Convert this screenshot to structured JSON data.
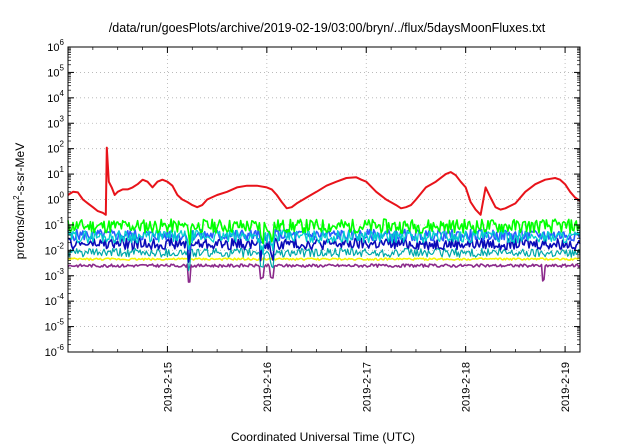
{
  "chart_data": {
    "type": "line",
    "title": "/data/run/goesPlots/archive/2019-02-19/03:00/bryn/../flux/5daysMoonFluxes.txt",
    "xlabel": "Coordinated Universal Time (UTC)",
    "ylabel_parts": [
      "protons/cm",
      "2",
      "-s-sr-MeV"
    ],
    "x_range_days": [
      "2019-02-14 00:00",
      "2019-02-19 03:00"
    ],
    "xlim_day_of_feb": [
      14.0,
      19.15
    ],
    "y_scale": "log",
    "ylim": [
      1e-06,
      1000000.0
    ],
    "y_tick_exponents": [
      -6,
      -5,
      -4,
      -3,
      -2,
      -1,
      0,
      1,
      2,
      3,
      4,
      5,
      6
    ],
    "x_ticks": [
      {
        "label": "2019-2-15",
        "day": 15
      },
      {
        "label": "2019-2-16",
        "day": 16
      },
      {
        "label": "2019-2-17",
        "day": 17
      },
      {
        "label": "2019-2-18",
        "day": 18
      },
      {
        "label": "2019-2-19",
        "day": 19
      }
    ],
    "grid": true,
    "series": [
      {
        "color": "#e8131a",
        "width": 2.0,
        "points": [
          [
            14.0,
            1.5
          ],
          [
            14.05,
            2.0
          ],
          [
            14.1,
            1.9
          ],
          [
            14.15,
            1.0
          ],
          [
            14.2,
            0.7
          ],
          [
            14.25,
            0.5
          ],
          [
            14.3,
            0.35
          ],
          [
            14.35,
            0.3
          ],
          [
            14.38,
            0.25
          ],
          [
            14.39,
            110
          ],
          [
            14.41,
            5.0
          ],
          [
            14.44,
            3.0
          ],
          [
            14.47,
            1.5
          ],
          [
            14.5,
            2.0
          ],
          [
            14.55,
            2.5
          ],
          [
            14.6,
            2.5
          ],
          [
            14.65,
            3.0
          ],
          [
            14.7,
            4.0
          ],
          [
            14.75,
            6.0
          ],
          [
            14.8,
            5.0
          ],
          [
            14.85,
            3.0
          ],
          [
            14.9,
            5.0
          ],
          [
            14.95,
            6.0
          ],
          [
            15.0,
            5.0
          ],
          [
            15.05,
            3.5
          ],
          [
            15.1,
            1.5
          ],
          [
            15.15,
            1.0
          ],
          [
            15.2,
            0.8
          ],
          [
            15.25,
            0.6
          ],
          [
            15.3,
            0.5
          ],
          [
            15.35,
            0.6
          ],
          [
            15.4,
            1.0
          ],
          [
            15.5,
            1.5
          ],
          [
            15.6,
            2.0
          ],
          [
            15.7,
            3.0
          ],
          [
            15.8,
            3.5
          ],
          [
            15.9,
            3.5
          ],
          [
            16.0,
            3.0
          ],
          [
            16.05,
            2.5
          ],
          [
            16.1,
            1.5
          ],
          [
            16.15,
            0.8
          ],
          [
            16.2,
            0.45
          ],
          [
            16.25,
            0.5
          ],
          [
            16.3,
            0.7
          ],
          [
            16.4,
            1.2
          ],
          [
            16.5,
            2.0
          ],
          [
            16.6,
            3.5
          ],
          [
            16.7,
            5.0
          ],
          [
            16.8,
            7.0
          ],
          [
            16.9,
            7.5
          ],
          [
            16.95,
            6.0
          ],
          [
            17.0,
            5.0
          ],
          [
            17.1,
            2.0
          ],
          [
            17.2,
            1.0
          ],
          [
            17.3,
            0.6
          ],
          [
            17.35,
            0.45
          ],
          [
            17.4,
            0.5
          ],
          [
            17.45,
            0.6
          ],
          [
            17.5,
            1.0
          ],
          [
            17.6,
            3.0
          ],
          [
            17.7,
            5.0
          ],
          [
            17.8,
            10.0
          ],
          [
            17.85,
            12.0
          ],
          [
            17.9,
            9.0
          ],
          [
            17.95,
            5.0
          ],
          [
            18.0,
            3.0
          ],
          [
            18.05,
            0.8
          ],
          [
            18.1,
            0.4
          ],
          [
            18.15,
            0.25
          ],
          [
            18.2,
            3.0
          ],
          [
            18.25,
            1.2
          ],
          [
            18.3,
            0.5
          ],
          [
            18.35,
            0.4
          ],
          [
            18.4,
            0.45
          ],
          [
            18.5,
            0.7
          ],
          [
            18.6,
            2.0
          ],
          [
            18.7,
            4.0
          ],
          [
            18.8,
            6.0
          ],
          [
            18.9,
            7.0
          ],
          [
            18.95,
            6.0
          ],
          [
            19.0,
            4.0
          ],
          [
            19.05,
            2.0
          ],
          [
            19.1,
            1.2
          ],
          [
            19.15,
            0.9
          ]
        ]
      },
      {
        "color": "#00ff00",
        "width": 1.6,
        "base": 0.09,
        "amp": 0.55,
        "seed": 11,
        "dips": [
          [
            15.22,
            0.5
          ],
          [
            15.95,
            0.45
          ],
          [
            16.05,
            0.45
          ]
        ]
      },
      {
        "color": "#00cfcf",
        "width": 1.3,
        "base": 0.035,
        "amp": 0.5,
        "seed": 29,
        "dips": [
          [
            15.22,
            0.5
          ],
          [
            15.95,
            0.45
          ],
          [
            16.05,
            0.45
          ]
        ]
      },
      {
        "color": "#2a5cff",
        "width": 1.6,
        "base": 0.04,
        "amp": 0.45,
        "seed": 5,
        "dips": [
          [
            15.22,
            0.5
          ],
          [
            15.95,
            0.45
          ],
          [
            16.05,
            0.45
          ]
        ]
      },
      {
        "color": "#0a0ab8",
        "width": 1.6,
        "base": 0.018,
        "amp": 0.45,
        "seed": 47,
        "dips": [
          [
            15.22,
            0.5
          ],
          [
            15.95,
            0.45
          ],
          [
            16.05,
            0.45
          ]
        ]
      },
      {
        "color": "#00a9a9",
        "width": 1.2,
        "base": 0.008,
        "amp": 0.35,
        "seed": 61,
        "dips": [
          [
            15.22,
            0.6
          ],
          [
            15.95,
            0.5
          ],
          [
            16.05,
            0.5
          ]
        ]
      },
      {
        "color": "#f5f500",
        "width": 1.6,
        "base": 0.0045,
        "amp": 0.08,
        "seed": 73,
        "dips": []
      },
      {
        "color": "#8b2a8b",
        "width": 1.6,
        "base": 0.0025,
        "amp": 0.12,
        "seed": 83,
        "dips": [
          [
            15.22,
            0.6
          ],
          [
            15.95,
            0.5
          ],
          [
            16.05,
            0.5
          ],
          [
            18.78,
            0.6
          ]
        ]
      }
    ]
  }
}
